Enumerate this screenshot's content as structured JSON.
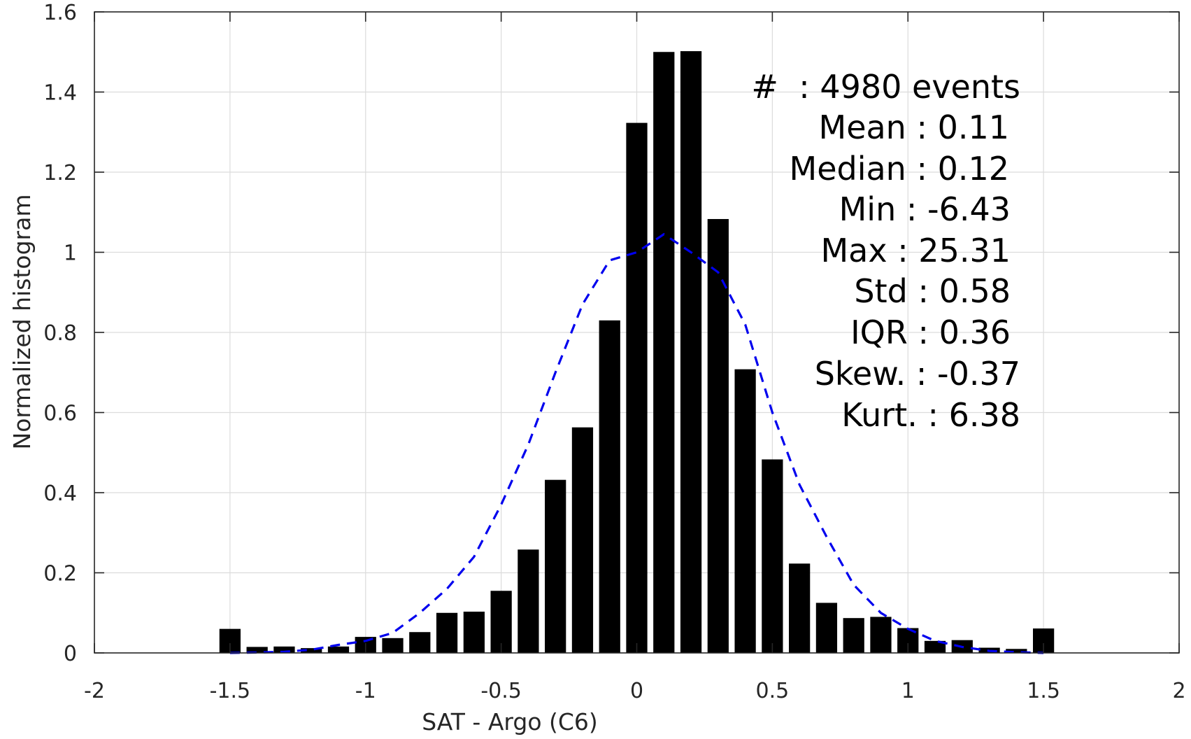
{
  "chart_data": {
    "type": "bar",
    "xlabel": "SAT - Argo (C6)",
    "ylabel": "Normalized histogram",
    "xlim": [
      -2,
      2
    ],
    "ylim": [
      0,
      1.6
    ],
    "grid": true,
    "xticks": [
      -2,
      -1.5,
      -1,
      -0.5,
      0,
      0.5,
      1,
      1.5,
      2
    ],
    "xtick_labels": [
      "-2",
      "-1.5",
      "-1",
      "-0.5",
      "0",
      "0.5",
      "1",
      "1.5",
      "2"
    ],
    "yticks": [
      0,
      0.2,
      0.4,
      0.6,
      0.8,
      1,
      1.2,
      1.4,
      1.6
    ],
    "ytick_labels": [
      "0",
      "0.2",
      "0.4",
      "0.6",
      "0.8",
      "1",
      "1.2",
      "1.4",
      "1.6"
    ],
    "series": [
      {
        "type": "bar",
        "color": "#000000",
        "bin_width": 0.1,
        "x": [
          -1.5,
          -1.4,
          -1.3,
          -1.2,
          -1.1,
          -1.0,
          -0.9,
          -0.8,
          -0.7,
          -0.6,
          -0.5,
          -0.4,
          -0.3,
          -0.2,
          -0.1,
          0.0,
          0.1,
          0.2,
          0.3,
          0.4,
          0.5,
          0.6,
          0.7,
          0.8,
          0.9,
          1.0,
          1.1,
          1.2,
          1.3,
          1.4,
          1.5
        ],
        "values": [
          0.06,
          0.015,
          0.016,
          0.012,
          0.016,
          0.04,
          0.037,
          0.052,
          0.1,
          0.103,
          0.155,
          0.258,
          0.432,
          0.563,
          0.83,
          1.323,
          1.5,
          1.502,
          1.083,
          0.708,
          0.483,
          0.223,
          0.125,
          0.087,
          0.09,
          0.062,
          0.03,
          0.032,
          0.013,
          0.01,
          0.061
        ]
      },
      {
        "type": "line",
        "style": "dashed",
        "color": "#0000ee",
        "x": [
          -1.5,
          -1.4,
          -1.3,
          -1.2,
          -1.1,
          -1.0,
          -0.9,
          -0.8,
          -0.7,
          -0.6,
          -0.5,
          -0.4,
          -0.3,
          -0.2,
          -0.1,
          0.0,
          0.1,
          0.2,
          0.3,
          0.4,
          0.5,
          0.6,
          0.7,
          0.8,
          0.9,
          1.0,
          1.1,
          1.2,
          1.3,
          1.4,
          1.5
        ],
        "values": [
          0.0,
          0.001,
          0.003,
          0.008,
          0.02,
          0.03,
          0.05,
          0.1,
          0.16,
          0.24,
          0.37,
          0.52,
          0.7,
          0.87,
          0.98,
          1.0,
          1.045,
          1.0,
          0.95,
          0.82,
          0.6,
          0.42,
          0.29,
          0.17,
          0.1,
          0.06,
          0.03,
          0.015,
          0.005,
          0.002,
          0.0
        ]
      }
    ],
    "annotations": [
      "#  : 4980 events",
      "Mean : 0.11",
      "Median : 0.12",
      "Min : -6.43",
      "Max : 25.31",
      "Std : 0.58",
      "IQR : 0.36",
      "Skew. : -0.37",
      "Kurt. : 6.38"
    ]
  },
  "colors": {
    "bars": "#000000",
    "fit_line": "#0000ee",
    "grid": "#dcdcdc",
    "axes": "#262626"
  }
}
